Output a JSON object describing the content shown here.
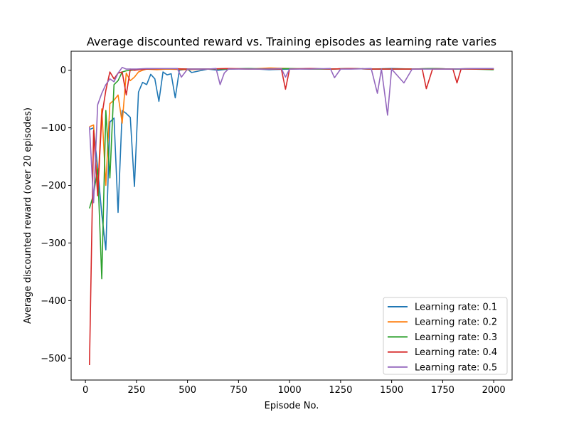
{
  "chart_data": {
    "type": "line",
    "title": "Average discounted reward vs. Training episodes as learning rate varies",
    "xlabel": "Episode No.",
    "ylabel": "Average discounted reward (over 20 episodes)",
    "xlim": [
      -70,
      2090
    ],
    "ylim": [
      -538,
      33
    ],
    "xticks": [
      0,
      250,
      500,
      750,
      1000,
      1250,
      1500,
      1750,
      2000
    ],
    "yticks": [
      0,
      -100,
      -200,
      -300,
      -400,
      -500
    ],
    "xtick_labels": [
      "0",
      "250",
      "500",
      "750",
      "1000",
      "1250",
      "1500",
      "1750",
      "2000"
    ],
    "ytick_labels": [
      "0",
      "−100",
      "−200",
      "−300",
      "−400",
      "−500"
    ],
    "grid": false,
    "legend_position": "lower-right",
    "series": [
      {
        "name": "Learning rate: 0.1",
        "color": "#1f77b4",
        "x": [
          20,
          40,
          60,
          80,
          100,
          120,
          140,
          160,
          180,
          200,
          220,
          240,
          260,
          280,
          300,
          320,
          340,
          360,
          380,
          400,
          420,
          440,
          460,
          500,
          520,
          560,
          600,
          650,
          700,
          800,
          900,
          1000,
          1100,
          1200,
          1300,
          1400,
          1500,
          1600,
          1700,
          1800,
          1900,
          2000
        ],
        "y": [
          -103,
          -100,
          -170,
          -250,
          -312,
          -90,
          -83,
          -247,
          -70,
          -75,
          -82,
          -202,
          -38,
          -21,
          -25,
          -7,
          -15,
          -54,
          -3,
          -8,
          -6,
          -48,
          0,
          2,
          -4,
          -1,
          2,
          0,
          2,
          3,
          1,
          2,
          3,
          2,
          3,
          2,
          3,
          2,
          3,
          2,
          3,
          3
        ]
      },
      {
        "name": "Learning rate: 0.2",
        "color": "#ff7f0e",
        "x": [
          20,
          40,
          60,
          80,
          100,
          120,
          140,
          160,
          180,
          200,
          220,
          240,
          260,
          280,
          300,
          350,
          400,
          500,
          600,
          700,
          800,
          900,
          1000,
          1100,
          1200,
          1300,
          1400,
          1500,
          1600,
          1700,
          1800,
          1900,
          2000
        ],
        "y": [
          -98,
          -95,
          -210,
          -67,
          -200,
          -58,
          -52,
          -43,
          -92,
          -5,
          -18,
          -12,
          -3,
          0,
          2,
          1,
          2,
          1,
          2,
          3,
          2,
          4,
          3,
          2,
          2,
          3,
          2,
          2,
          2,
          3,
          2,
          3,
          2
        ]
      },
      {
        "name": "Learning rate: 0.3",
        "color": "#2ca02c",
        "x": [
          20,
          40,
          60,
          80,
          100,
          120,
          140,
          160,
          180,
          200,
          250,
          300,
          400,
          500,
          600,
          700,
          800,
          900,
          1000,
          1100,
          1200,
          1300,
          1400,
          1500,
          1600,
          1700,
          1800,
          1900,
          2000
        ],
        "y": [
          -240,
          -215,
          -170,
          -362,
          -70,
          -187,
          -25,
          -18,
          -3,
          -1,
          1,
          2,
          3,
          2,
          2,
          2,
          3,
          2,
          3,
          2,
          2,
          3,
          2,
          2,
          2,
          3,
          2,
          2,
          1
        ]
      },
      {
        "name": "Learning rate: 0.4",
        "color": "#d62728",
        "x": [
          20,
          40,
          60,
          80,
          100,
          120,
          140,
          160,
          180,
          200,
          220,
          240,
          260,
          300,
          400,
          500,
          600,
          700,
          800,
          900,
          960,
          980,
          1000,
          1100,
          1200,
          1300,
          1400,
          1500,
          1600,
          1650,
          1670,
          1700,
          1800,
          1820,
          1840,
          1900,
          2000
        ],
        "y": [
          -512,
          -105,
          -218,
          -80,
          -35,
          -3,
          -15,
          -5,
          -3,
          -43,
          2,
          0,
          1,
          2,
          3,
          2,
          2,
          3,
          2,
          2,
          2,
          -33,
          2,
          3,
          2,
          3,
          2,
          2,
          2,
          2,
          -32,
          2,
          2,
          -22,
          2,
          2,
          2
        ]
      },
      {
        "name": "Learning rate: 0.5",
        "color": "#9467bd",
        "x": [
          20,
          40,
          60,
          80,
          100,
          120,
          140,
          160,
          180,
          200,
          250,
          300,
          400,
          450,
          470,
          500,
          600,
          640,
          660,
          680,
          700,
          800,
          900,
          960,
          980,
          1000,
          1100,
          1200,
          1220,
          1250,
          1300,
          1400,
          1430,
          1450,
          1480,
          1500,
          1560,
          1600,
          1700,
          1800,
          1900,
          2000
        ],
        "y": [
          -98,
          -230,
          -60,
          -40,
          -25,
          -15,
          -20,
          -5,
          5,
          2,
          2,
          3,
          3,
          3,
          -12,
          2,
          2,
          3,
          -25,
          -5,
          2,
          2,
          2,
          3,
          -12,
          2,
          2,
          3,
          -13,
          2,
          2,
          3,
          -40,
          2,
          -78,
          2,
          -22,
          2,
          2,
          2,
          3,
          3
        ]
      }
    ]
  }
}
